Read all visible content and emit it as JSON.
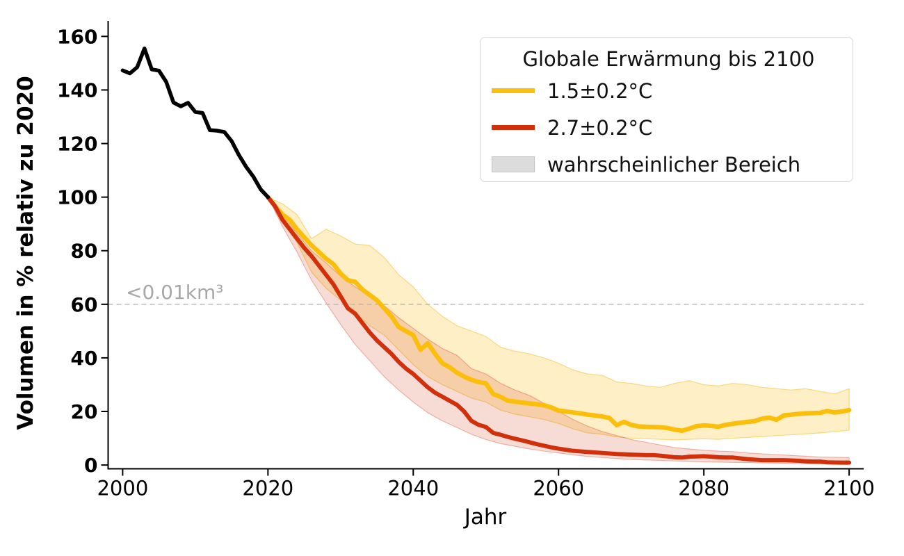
{
  "chart_data": {
    "type": "line",
    "title": "",
    "xlabel": "Jahr",
    "ylabel": "Volumen in % relativ zu 2020",
    "xlim": [
      1998,
      2102
    ],
    "ylim": [
      -1.4,
      165.8
    ],
    "xticks": [
      2000,
      2020,
      2040,
      2060,
      2080,
      2100
    ],
    "yticks": [
      0,
      20,
      40,
      60,
      80,
      100,
      120,
      140,
      160
    ],
    "grid": false,
    "threshold": {
      "value": 60,
      "label": "<0.01km³",
      "line_color": "#b3b3b3",
      "label_color": "#a8a8a8"
    },
    "legend": {
      "position": "upper right",
      "title": "Globale Erwärmung bis 2100",
      "items": [
        {
          "label": "1.5±0.2°C",
          "swatch": "line",
          "color": "#FBBE0B"
        },
        {
          "label": "2.7±0.2°C",
          "swatch": "line",
          "color": "#D2300B"
        },
        {
          "label": "wahrscheinlicher Bereich",
          "swatch": "patch",
          "color": "#DCDCDC"
        }
      ]
    },
    "series": [
      {
        "id": "historical",
        "color": "#000000",
        "width": 5.5,
        "x": [
          2000,
          2001,
          2002,
          2003,
          2004,
          2005,
          2006,
          2007,
          2008,
          2009,
          2010,
          2011,
          2012,
          2013,
          2014,
          2015,
          2016,
          2017,
          2018,
          2019,
          2020
        ],
        "y": [
          147.3,
          146.2,
          148.5,
          155.5,
          147.7,
          147.2,
          143.0,
          135.3,
          133.9,
          135.2,
          131.8,
          131.4,
          125.0,
          124.8,
          124.3,
          120.9,
          115.7,
          111.3,
          107.6,
          102.9,
          100.0
        ]
      },
      {
        "id": "scenario-1-5C",
        "label": "1.5±0.2°C",
        "color": "#FBBE0B",
        "width": 6.5,
        "x": [
          2020,
          2021,
          2022,
          2023,
          2024,
          2025,
          2026,
          2027,
          2028,
          2029,
          2030,
          2031,
          2032,
          2033,
          2034,
          2035,
          2036,
          2037,
          2038,
          2039,
          2040,
          2041,
          2042,
          2043,
          2044,
          2045,
          2046,
          2047,
          2048,
          2049,
          2050,
          2051,
          2052,
          2053,
          2054,
          2055,
          2056,
          2057,
          2058,
          2059,
          2060,
          2061,
          2062,
          2063,
          2064,
          2065,
          2066,
          2067,
          2068,
          2069,
          2070,
          2071,
          2072,
          2073,
          2074,
          2075,
          2076,
          2077,
          2078,
          2079,
          2080,
          2081,
          2082,
          2083,
          2084,
          2085,
          2086,
          2087,
          2088,
          2089,
          2090,
          2091,
          2092,
          2093,
          2094,
          2095,
          2096,
          2097,
          2098,
          2099,
          2100
        ],
        "y": [
          100,
          96.5,
          93.5,
          91.5,
          88,
          85,
          82,
          79.5,
          77,
          75,
          71.5,
          69,
          68.4,
          65.5,
          63.5,
          61.5,
          58.5,
          55.5,
          51.5,
          50,
          48.5,
          43,
          45.5,
          41.5,
          38,
          36.5,
          34.5,
          33,
          31.8,
          31,
          30.5,
          26.5,
          25.5,
          24,
          23.7,
          23.3,
          23,
          22.7,
          22.3,
          21.5,
          20.3,
          20,
          19.6,
          19.3,
          18.8,
          18.5,
          18.1,
          17.6,
          14.9,
          16.1,
          15,
          14.4,
          14.3,
          14.2,
          14.1,
          13.8,
          13.2,
          12.8,
          13.6,
          14.5,
          14.8,
          14.6,
          14.3,
          15,
          15.4,
          15.8,
          16.1,
          16.4,
          17.3,
          17.7,
          16.9,
          18.5,
          18.8,
          19.1,
          19.3,
          19.4,
          19.5,
          20.2,
          19.6,
          20,
          20.5
        ],
        "band": {
          "fill": "rgba(250,190,20,0.24)",
          "edge": "rgba(243,185,30,0.5)",
          "x": [
            2020,
            2022,
            2024,
            2026,
            2028,
            2030,
            2032,
            2034,
            2036,
            2038,
            2040,
            2042,
            2044,
            2046,
            2048,
            2050,
            2052,
            2054,
            2056,
            2058,
            2060,
            2062,
            2064,
            2066,
            2068,
            2070,
            2072,
            2074,
            2076,
            2078,
            2080,
            2082,
            2084,
            2086,
            2088,
            2090,
            2092,
            2094,
            2096,
            2098,
            2100
          ],
          "upper": [
            100,
            97.5,
            93.5,
            84.5,
            88,
            85.5,
            82.5,
            82,
            77.5,
            71,
            66.5,
            60,
            55.5,
            52,
            50,
            48,
            44,
            42.5,
            41.5,
            40,
            38,
            35.5,
            34,
            33.5,
            31,
            30.5,
            29.5,
            29,
            30.5,
            31.5,
            30,
            29.5,
            30.5,
            30,
            29,
            28.5,
            28,
            28.5,
            27.5,
            26.5,
            28.5
          ],
          "lower": [
            100,
            91,
            83,
            72,
            66,
            61.5,
            57,
            52,
            48.5,
            43,
            37.5,
            33,
            30,
            27.5,
            25,
            23.5,
            20.5,
            19,
            18,
            17,
            15.5,
            13.5,
            12,
            11.5,
            10.5,
            10,
            9.8,
            9.6,
            9.4,
            9.6,
            9.8,
            9.6,
            10,
            10.3,
            10.6,
            11,
            11.3,
            11.6,
            12,
            12.5,
            13
          ]
        }
      },
      {
        "id": "scenario-2-7C",
        "label": "2.7±0.2°C",
        "color": "#D2300B",
        "width": 6,
        "x": [
          2020,
          2021,
          2022,
          2023,
          2024,
          2025,
          2026,
          2027,
          2028,
          2029,
          2030,
          2031,
          2032,
          2033,
          2034,
          2035,
          2036,
          2037,
          2038,
          2039,
          2040,
          2041,
          2042,
          2043,
          2044,
          2045,
          2046,
          2047,
          2048,
          2049,
          2050,
          2051,
          2052,
          2053,
          2054,
          2055,
          2056,
          2057,
          2058,
          2059,
          2060,
          2061,
          2062,
          2063,
          2064,
          2065,
          2066,
          2067,
          2068,
          2069,
          2070,
          2071,
          2072,
          2073,
          2074,
          2075,
          2076,
          2077,
          2078,
          2079,
          2080,
          2081,
          2082,
          2083,
          2084,
          2085,
          2086,
          2087,
          2088,
          2089,
          2090,
          2091,
          2092,
          2093,
          2094,
          2095,
          2096,
          2097,
          2098,
          2099,
          2100
        ],
        "y": [
          100,
          96.5,
          91.5,
          88,
          84.5,
          81,
          78,
          74.5,
          71,
          67.5,
          63,
          58.5,
          56.5,
          53,
          49.5,
          46.5,
          44,
          41.5,
          38.5,
          36,
          34,
          31.5,
          29,
          27,
          25.5,
          24,
          22.5,
          20,
          16.5,
          15,
          14.2,
          12,
          11.3,
          10.5,
          9.8,
          9.2,
          8.5,
          7.8,
          7.2,
          6.6,
          6.1,
          5.7,
          5.3,
          5.1,
          4.9,
          4.7,
          4.5,
          4.3,
          4.1,
          4.0,
          3.9,
          3.8,
          3.7,
          3.7,
          3.5,
          3.2,
          2.9,
          2.8,
          3.1,
          3.2,
          3.3,
          3.1,
          2.9,
          2.8,
          2.8,
          2.5,
          2.2,
          2.0,
          1.8,
          1.8,
          1.8,
          1.8,
          1.7,
          1.6,
          1.4,
          1.3,
          1.3,
          1.0,
          0.95,
          0.9,
          0.9
        ],
        "band": {
          "fill": "rgba(210,48,11,0.17)",
          "edge": "rgba(210,48,11,0.32)",
          "x": [
            2020,
            2022,
            2024,
            2026,
            2028,
            2030,
            2032,
            2034,
            2036,
            2038,
            2040,
            2042,
            2044,
            2046,
            2048,
            2050,
            2052,
            2054,
            2056,
            2058,
            2060,
            2062,
            2064,
            2066,
            2068,
            2070,
            2072,
            2074,
            2076,
            2078,
            2080,
            2082,
            2084,
            2086,
            2088,
            2090,
            2092,
            2094,
            2096,
            2098,
            2100
          ],
          "upper": [
            100,
            93,
            86.5,
            80,
            75.5,
            70.5,
            66.5,
            63,
            59.5,
            55,
            51,
            47,
            43.5,
            41,
            36,
            34,
            30.5,
            28,
            26,
            23,
            20,
            17,
            14.5,
            12.5,
            11,
            9.5,
            8.5,
            7.5,
            6.5,
            6,
            5.5,
            5.2,
            5,
            4.5,
            4.2,
            3.9,
            3.6,
            3.3,
            3,
            2.9,
            2.8
          ],
          "lower": [
            100,
            89,
            79.5,
            69,
            60.5,
            52.5,
            45,
            39,
            33,
            28,
            23.5,
            19.5,
            16.5,
            14,
            11.5,
            9.5,
            8,
            7,
            6,
            5.2,
            4.5,
            3.8,
            3.2,
            2.8,
            2.4,
            2.1,
            1.9,
            1.7,
            1.5,
            1.35,
            1.2,
            1.1,
            1.0,
            0.9,
            0.8,
            0.7,
            0.6,
            0.5,
            0.4,
            0.3,
            0.25
          ]
        }
      }
    ]
  }
}
